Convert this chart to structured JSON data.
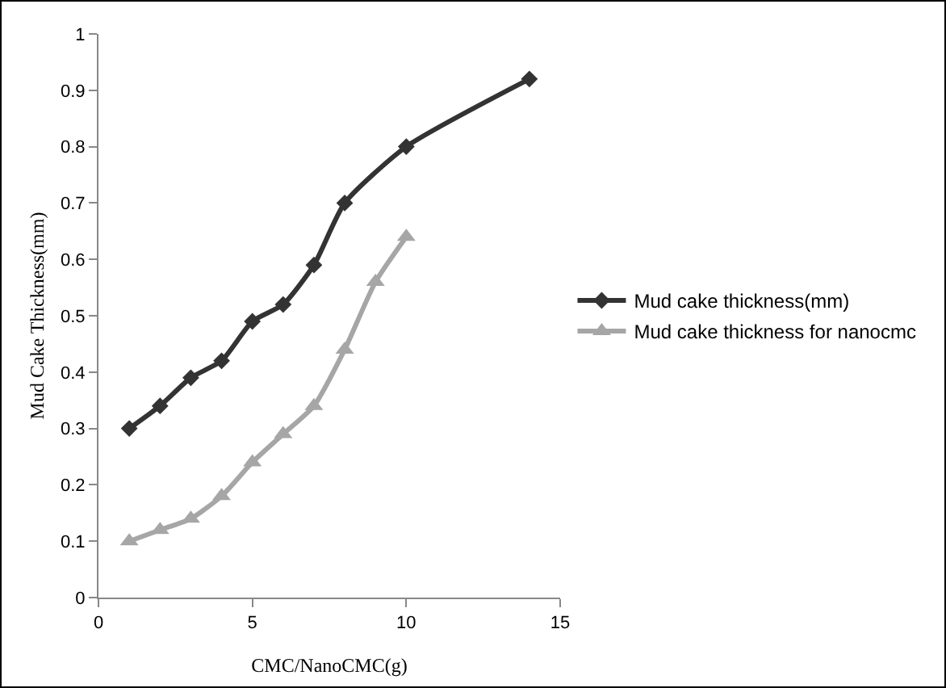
{
  "chart_data": {
    "type": "line",
    "xlabel": "CMC/NanoCMC(g)",
    "ylabel": "Mud Cake Thickness(mm)",
    "xlim": [
      0,
      15
    ],
    "xticks": [
      0,
      5,
      10,
      15
    ],
    "ylim": [
      0,
      1
    ],
    "yticks": [
      0,
      0.1,
      0.2,
      0.3,
      0.4,
      0.5,
      0.6,
      0.7,
      0.8,
      0.9,
      1
    ],
    "grid": false,
    "legend": "right",
    "series": [
      {
        "name": "Mud cake thickness(mm)",
        "color": "#333333",
        "marker": "diamond",
        "x": [
          1,
          2,
          3,
          4,
          5,
          6,
          7,
          8,
          10,
          14
        ],
        "values": [
          0.3,
          0.34,
          0.39,
          0.42,
          0.49,
          0.52,
          0.59,
          0.7,
          0.8,
          0.92
        ]
      },
      {
        "name": "Mud cake thickness for nanocmc",
        "color": "#a6a6a6",
        "marker": "triangle",
        "x": [
          1,
          2,
          3,
          4,
          5,
          6,
          7,
          8,
          9,
          10
        ],
        "values": [
          0.1,
          0.12,
          0.14,
          0.18,
          0.24,
          0.29,
          0.34,
          0.44,
          0.56,
          0.64
        ]
      }
    ]
  }
}
